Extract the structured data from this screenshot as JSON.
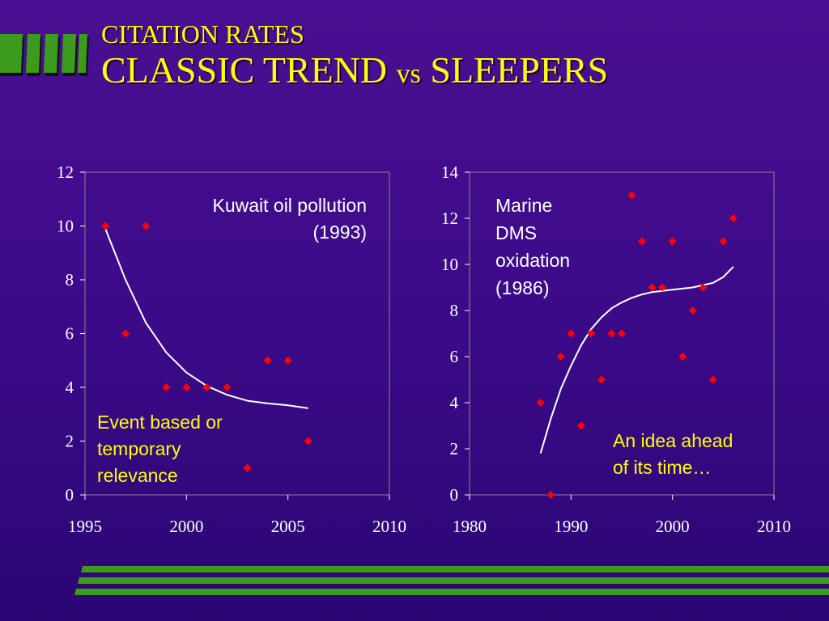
{
  "slide": {
    "title_line1": "CITATION RATES",
    "title_line2_a": "CLASSIC TREND ",
    "title_line2_vs": "vs",
    "title_line2_b": " SLEEPERS",
    "colors": {
      "background": "#3a0a88",
      "title": "#ffff00",
      "accent_green": "#3c9a1c",
      "marker": "#ff0000",
      "fit_line": "#ffffff",
      "annotation_white": "#ffffff",
      "annotation_yellow": "#ffff00"
    }
  },
  "chart_data": [
    {
      "type": "scatter",
      "title": "",
      "xlabel": "",
      "ylabel": "",
      "xlim": [
        1995,
        2010
      ],
      "ylim": [
        0,
        12
      ],
      "x_ticks": [
        1995,
        2000,
        2005,
        2010
      ],
      "y_ticks": [
        0,
        2,
        4,
        6,
        8,
        10,
        12
      ],
      "grid": false,
      "legend": "none",
      "points": [
        [
          1996,
          10
        ],
        [
          1997,
          6
        ],
        [
          1998,
          10
        ],
        [
          1999,
          4
        ],
        [
          2000,
          4
        ],
        [
          2001,
          4
        ],
        [
          2002,
          4
        ],
        [
          2003,
          1
        ],
        [
          2004,
          5
        ],
        [
          2005,
          5
        ],
        [
          2006,
          2
        ]
      ],
      "trend": [
        [
          1996,
          9.9
        ],
        [
          1997,
          8.0
        ],
        [
          1998,
          6.4
        ],
        [
          1999,
          5.3
        ],
        [
          2000,
          4.55
        ],
        [
          2001,
          4.05
        ],
        [
          2002,
          3.72
        ],
        [
          2003,
          3.5
        ],
        [
          2004,
          3.4
        ],
        [
          2005,
          3.33
        ],
        [
          2006,
          3.22
        ]
      ],
      "annotations": [
        {
          "lines": [
            "Kuwait oil pollution",
            "(1993)"
          ],
          "color": "#ffffff",
          "align": "right"
        },
        {
          "lines": [
            "Event based or",
            "temporary",
            "relevance"
          ],
          "color": "#ffff00",
          "align": "left"
        }
      ]
    },
    {
      "type": "scatter",
      "title": "",
      "xlabel": "",
      "ylabel": "",
      "xlim": [
        1980,
        2010
      ],
      "ylim": [
        0,
        14
      ],
      "x_ticks": [
        1980,
        1990,
        2000,
        2010
      ],
      "y_ticks": [
        0,
        2,
        4,
        6,
        8,
        10,
        12,
        14
      ],
      "grid": false,
      "legend": "none",
      "points": [
        [
          1987,
          4
        ],
        [
          1988,
          0
        ],
        [
          1989,
          6
        ],
        [
          1990,
          7
        ],
        [
          1991,
          3
        ],
        [
          1992,
          7
        ],
        [
          1993,
          5
        ],
        [
          1994,
          7
        ],
        [
          1995,
          7
        ],
        [
          1996,
          13
        ],
        [
          1997,
          11
        ],
        [
          1998,
          9
        ],
        [
          1999,
          9
        ],
        [
          2000,
          11
        ],
        [
          2001,
          6
        ],
        [
          2002,
          8
        ],
        [
          2003,
          9
        ],
        [
          2004,
          5
        ],
        [
          2005,
          11
        ],
        [
          2006,
          12
        ]
      ],
      "trend": [
        [
          1987,
          1.8
        ],
        [
          1988,
          3.3
        ],
        [
          1989,
          4.6
        ],
        [
          1990,
          5.6
        ],
        [
          1991,
          6.5
        ],
        [
          1992,
          7.2
        ],
        [
          1993,
          7.7
        ],
        [
          1994,
          8.1
        ],
        [
          1995,
          8.35
        ],
        [
          1996,
          8.55
        ],
        [
          1997,
          8.7
        ],
        [
          1998,
          8.8
        ],
        [
          1999,
          8.85
        ],
        [
          2000,
          8.9
        ],
        [
          2001,
          8.95
        ],
        [
          2002,
          9.0
        ],
        [
          2003,
          9.1
        ],
        [
          2004,
          9.2
        ],
        [
          2005,
          9.45
        ],
        [
          2006,
          9.9
        ]
      ],
      "annotations": [
        {
          "lines": [
            "Marine",
            "DMS",
            "oxidation",
            "(1986)"
          ],
          "color": "#ffffff",
          "align": "left"
        },
        {
          "lines": [
            "An idea ahead",
            "of its time…"
          ],
          "color": "#ffff00",
          "align": "left"
        }
      ]
    }
  ]
}
